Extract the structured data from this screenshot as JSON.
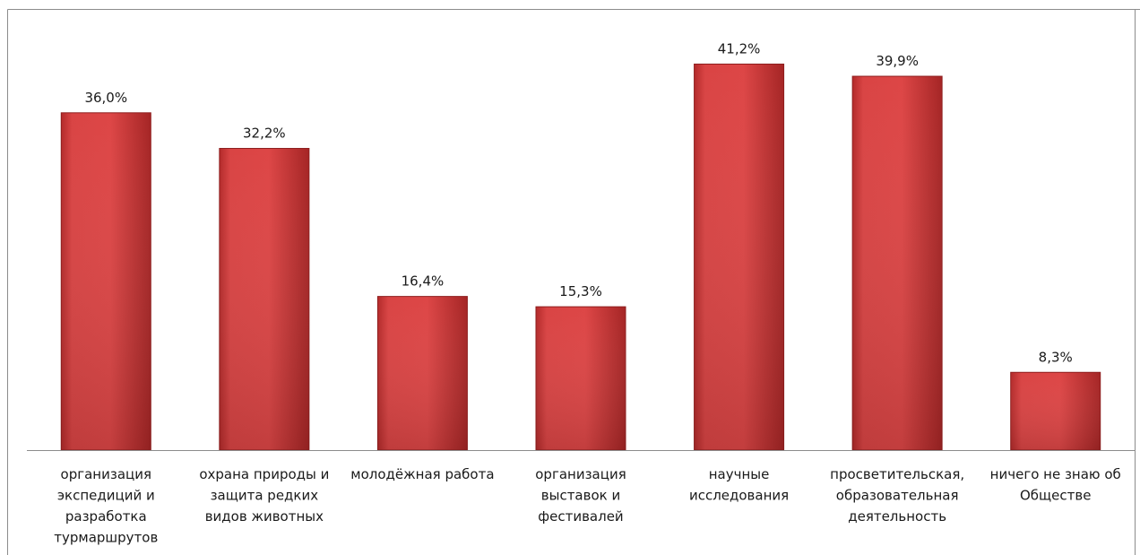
{
  "chart_data": {
    "type": "bar",
    "categories": [
      [
        "организация",
        "экспедиций и",
        "разработка",
        "турмаршрутов"
      ],
      [
        "охрана природы и",
        "защита редких",
        "видов животных"
      ],
      [
        "молодёжная работа"
      ],
      [
        "организация",
        "выставок и",
        "фестивалей"
      ],
      [
        "научные",
        "исследования"
      ],
      [
        "просветительская,",
        "образовательная",
        "деятельность"
      ],
      [
        "ничего не знаю об",
        "Обществе"
      ]
    ],
    "values": [
      36.0,
      32.2,
      16.4,
      15.3,
      41.2,
      39.9,
      8.3
    ],
    "value_labels": [
      "36,0%",
      "32,2%",
      "16,4%",
      "15,3%",
      "41,2%",
      "39,9%",
      "8,3%"
    ],
    "title": "",
    "xlabel": "",
    "ylabel": "",
    "ylim": [
      0,
      45
    ],
    "grid": false,
    "legend": "none",
    "bar_color": "#d63c3c",
    "bar_color_dark": "#a82424"
  }
}
